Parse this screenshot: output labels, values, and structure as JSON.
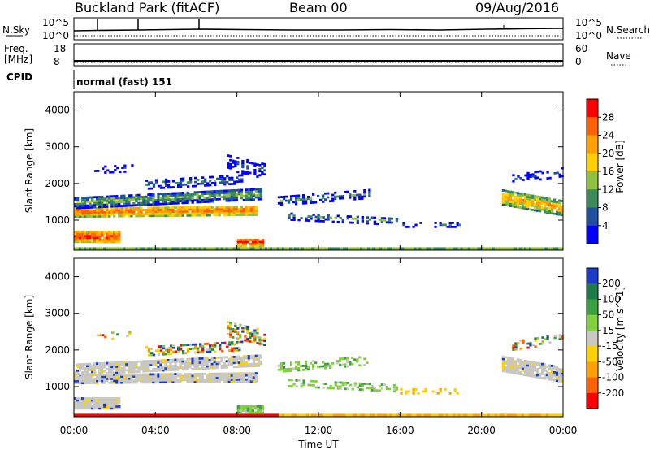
{
  "header": {
    "title": "Buckland Park (fitACF)",
    "beam": "Beam 00",
    "date": "09/Aug/2016"
  },
  "strips": {
    "nsky_label": "N.Sky",
    "nsky_ticks": [
      "10^5",
      "10^0"
    ],
    "nsearch_label": "N.Search",
    "nsearch_ticks": [
      "10^5",
      "10^0"
    ],
    "freq_label": "Freq.",
    "freq_unit": "[MHz]",
    "freq_ticks": [
      "18",
      "8"
    ],
    "nave_label": "Nave",
    "nave_ticks": [
      "60",
      "0"
    ],
    "cpid_label": "CPID",
    "cpid_value": "normal (fast) 151"
  },
  "chart_data": [
    {
      "type": "heatmap",
      "name": "power",
      "ylabel": "Slant Range [km]",
      "yticks": [
        "4000",
        "3000",
        "2000",
        "1000"
      ],
      "ylim": [
        180,
        4500
      ],
      "colorbar_label": "Power [dB]",
      "colorbar_ticks": [
        "28",
        "24",
        "20",
        "16",
        "12",
        "8",
        "4"
      ],
      "colorbar_colors": [
        "#ff0000",
        "#ff6000",
        "#ffa000",
        "#ffd000",
        "#90c040",
        "#3a8a5a",
        "#2050a0",
        "#0000ff"
      ]
    },
    {
      "type": "heatmap",
      "name": "velocity",
      "ylabel": "Slant Range [km]",
      "yticks": [
        "4000",
        "3000",
        "2000",
        "1000"
      ],
      "ylim": [
        180,
        4500
      ],
      "xlabel": "Time UT",
      "xticks": [
        "00:00",
        "04:00",
        "08:00",
        "12:00",
        "16:00",
        "20:00",
        "00:00"
      ],
      "colorbar_label": "Velocity [m s^-1]",
      "colorbar_ticks": [
        "200",
        "100",
        "50",
        "15",
        "-15",
        "-50",
        "-100",
        "-200"
      ],
      "colorbar_colors": [
        "#1a3cc8",
        "#1f7a4a",
        "#3aa040",
        "#80d040",
        "#c8c8c0",
        "#ffd000",
        "#ffa000",
        "#ff6000",
        "#ff0000"
      ]
    }
  ]
}
